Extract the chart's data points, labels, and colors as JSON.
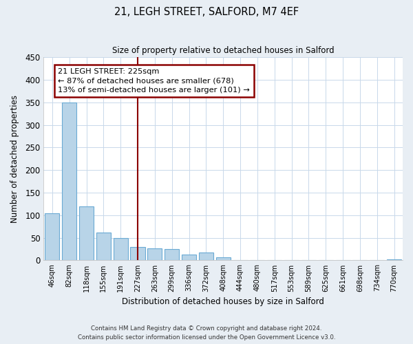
{
  "title": "21, LEGH STREET, SALFORD, M7 4EF",
  "subtitle": "Size of property relative to detached houses in Salford",
  "xlabel": "Distribution of detached houses by size in Salford",
  "ylabel": "Number of detached properties",
  "categories": [
    "46sqm",
    "82sqm",
    "118sqm",
    "155sqm",
    "191sqm",
    "227sqm",
    "263sqm",
    "299sqm",
    "336sqm",
    "372sqm",
    "408sqm",
    "444sqm",
    "480sqm",
    "517sqm",
    "553sqm",
    "589sqm",
    "625sqm",
    "661sqm",
    "698sqm",
    "734sqm",
    "770sqm"
  ],
  "values": [
    105,
    350,
    120,
    62,
    50,
    30,
    26,
    25,
    13,
    17,
    7,
    0,
    0,
    0,
    0,
    0,
    0,
    0,
    0,
    0,
    2
  ],
  "bar_color": "#b8d4e8",
  "bar_edge_color": "#6aaad4",
  "vline_x": 5.0,
  "vline_color": "#8b0000",
  "annotation_line1": "21 LEGH STREET: 225sqm",
  "annotation_line2": "← 87% of detached houses are smaller (678)",
  "annotation_line3": "13% of semi-detached houses are larger (101) →",
  "annotation_box_color": "#8b0000",
  "ylim": [
    0,
    450
  ],
  "yticks": [
    0,
    50,
    100,
    150,
    200,
    250,
    300,
    350,
    400,
    450
  ],
  "footer_line1": "Contains HM Land Registry data © Crown copyright and database right 2024.",
  "footer_line2": "Contains public sector information licensed under the Open Government Licence v3.0.",
  "bg_color": "#e8eef4",
  "plot_bg_color": "#ffffff",
  "grid_color": "#c8d8ea"
}
